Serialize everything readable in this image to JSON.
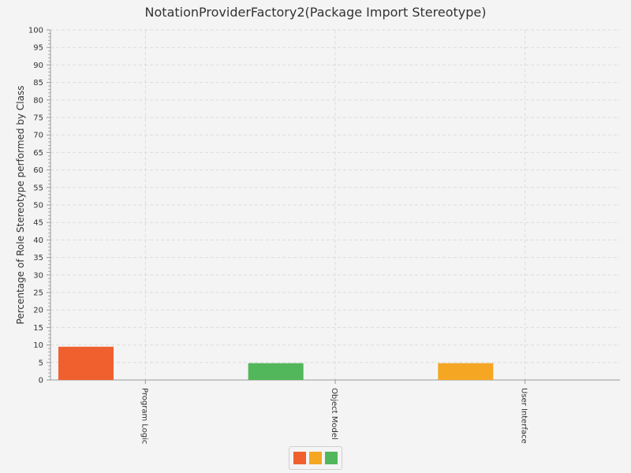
{
  "chart_data": {
    "type": "bar",
    "title": "NotationProviderFactory2(Package Import Stereotype)",
    "xlabel": "",
    "ylabel": "Percentage of Role Stereotype performed by Class",
    "categories": [
      "Program Logic",
      "Object Model",
      "User Interface"
    ],
    "series": [
      {
        "values": [
          9.5,
          0,
          0
        ],
        "color": "#f0602f"
      },
      {
        "values": [
          0,
          0,
          4.8
        ],
        "color": "#f5a623"
      },
      {
        "values": [
          0,
          4.8,
          0
        ],
        "color": "#52b75a"
      }
    ],
    "ylim": [
      0,
      100
    ],
    "ytick_step": 5,
    "grid": true,
    "legend": "bottom"
  }
}
